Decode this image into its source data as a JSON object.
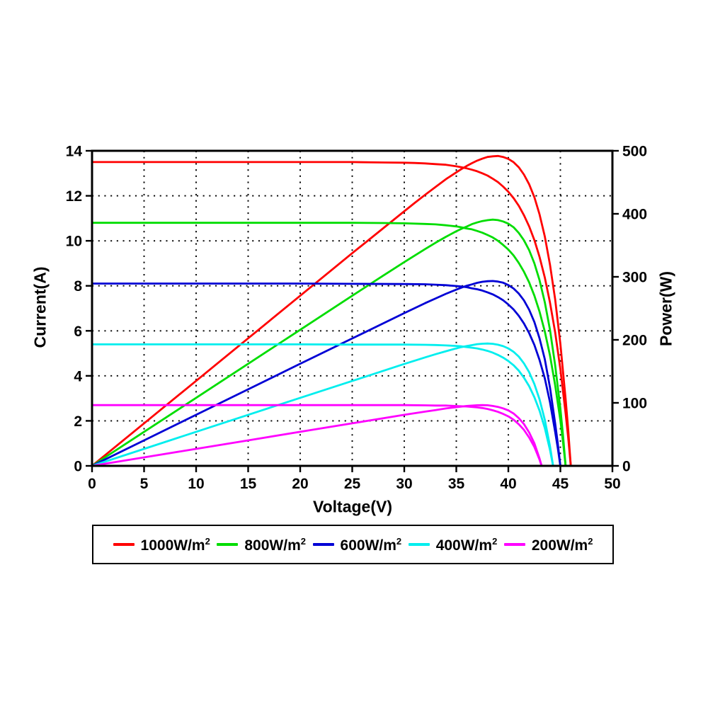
{
  "figure": {
    "background": "#ffffff",
    "grid": {
      "style": "dotted",
      "color": "#000000"
    },
    "frame_color": "#000000"
  },
  "chart_data": {
    "type": "line",
    "title": "",
    "xlabel": "Voltage(V)",
    "ylabel_left": "Current(A)",
    "ylabel_right": "Power(W)",
    "x_range": [
      0,
      50
    ],
    "left_range": [
      0,
      14
    ],
    "right_range": [
      0,
      500
    ],
    "x_ticks": [
      0,
      5,
      10,
      15,
      20,
      25,
      30,
      35,
      40,
      45,
      50
    ],
    "left_ticks": [
      0,
      2,
      4,
      6,
      8,
      10,
      12,
      14
    ],
    "right_ticks": [
      0,
      100,
      200,
      300,
      400,
      500
    ],
    "grid_on": true,
    "legend_position": "bottom",
    "description": "Photovoltaic panel I-V curves (left axis, Current) and P-V curves (right axis, Power = V x I) at five irradiance levels",
    "series": [
      {
        "name": "1000W/m²",
        "color": "#ff0000",
        "isc_a": 13.5,
        "voc_v": 46.0,
        "vmp_v": 38.5,
        "pmax_w": 490,
        "iv_points": [
          [
            0,
            13.5
          ],
          [
            5,
            13.5
          ],
          [
            10,
            13.5
          ],
          [
            15,
            13.5
          ],
          [
            20,
            13.5
          ],
          [
            25,
            13.5
          ],
          [
            28,
            13.48
          ],
          [
            30,
            13.47
          ],
          [
            31,
            13.46
          ],
          [
            32,
            13.44
          ],
          [
            33,
            13.41
          ],
          [
            34,
            13.38
          ],
          [
            35,
            13.31
          ],
          [
            35.5,
            13.27
          ],
          [
            36,
            13.22
          ],
          [
            36.5,
            13.16
          ],
          [
            37,
            13.09
          ],
          [
            37.5,
            13.0
          ],
          [
            38,
            12.9
          ],
          [
            38.5,
            12.76
          ],
          [
            39,
            12.61
          ],
          [
            39.5,
            12.41
          ],
          [
            40,
            12.18
          ],
          [
            40.5,
            11.9
          ],
          [
            41,
            11.56
          ],
          [
            41.5,
            11.14
          ],
          [
            42,
            10.64
          ],
          [
            42.5,
            10.03
          ],
          [
            43,
            9.28
          ],
          [
            43.5,
            8.37
          ],
          [
            44,
            7.26
          ],
          [
            44.5,
            5.94
          ],
          [
            45,
            4.3
          ],
          [
            45.5,
            2.33
          ],
          [
            45.75,
            1.27
          ],
          [
            46,
            0
          ]
        ]
      },
      {
        "name": "800W/m²",
        "color": "#00dd00",
        "isc_a": 10.8,
        "voc_v": 45.5,
        "vmp_v": 38.0,
        "pmax_w": 390,
        "iv_points": [
          [
            0,
            10.8
          ],
          [
            5,
            10.8
          ],
          [
            10,
            10.8
          ],
          [
            15,
            10.8
          ],
          [
            20,
            10.8
          ],
          [
            25,
            10.8
          ],
          [
            28,
            10.79
          ],
          [
            30,
            10.78
          ],
          [
            32,
            10.75
          ],
          [
            33,
            10.73
          ],
          [
            34,
            10.69
          ],
          [
            35,
            10.64
          ],
          [
            35.5,
            10.6
          ],
          [
            36,
            10.55
          ],
          [
            36.5,
            10.51
          ],
          [
            37,
            10.44
          ],
          [
            37.5,
            10.36
          ],
          [
            38,
            10.26
          ],
          [
            38.5,
            10.15
          ],
          [
            39,
            10.0
          ],
          [
            39.5,
            9.82
          ],
          [
            40,
            9.61
          ],
          [
            40.5,
            9.35
          ],
          [
            41,
            9.02
          ],
          [
            41.5,
            8.63
          ],
          [
            42,
            8.15
          ],
          [
            42.5,
            7.56
          ],
          [
            43,
            6.85
          ],
          [
            43.5,
            5.97
          ],
          [
            44,
            4.91
          ],
          [
            44.5,
            3.59
          ],
          [
            45,
            2.02
          ],
          [
            45.25,
            1.07
          ],
          [
            45.5,
            0
          ]
        ]
      },
      {
        "name": "600W/m²",
        "color": "#0000d5",
        "isc_a": 8.1,
        "voc_v": 45.0,
        "vmp_v": 37.5,
        "pmax_w": 292,
        "iv_points": [
          [
            0,
            8.1
          ],
          [
            5,
            8.1
          ],
          [
            10,
            8.1
          ],
          [
            15,
            8.1
          ],
          [
            20,
            8.1
          ],
          [
            25,
            8.09
          ],
          [
            30,
            8.08
          ],
          [
            32,
            8.07
          ],
          [
            33,
            8.05
          ],
          [
            34,
            8.03
          ],
          [
            35,
            7.99
          ],
          [
            35.5,
            7.97
          ],
          [
            36,
            7.94
          ],
          [
            36.5,
            7.89
          ],
          [
            37,
            7.85
          ],
          [
            37.5,
            7.79
          ],
          [
            38,
            7.71
          ],
          [
            38.5,
            7.62
          ],
          [
            39,
            7.5
          ],
          [
            39.5,
            7.36
          ],
          [
            40,
            7.17
          ],
          [
            40.5,
            6.95
          ],
          [
            41,
            6.67
          ],
          [
            41.5,
            6.33
          ],
          [
            42,
            5.9
          ],
          [
            42.5,
            5.37
          ],
          [
            43,
            4.7
          ],
          [
            43.5,
            3.89
          ],
          [
            44,
            2.83
          ],
          [
            44.5,
            1.52
          ],
          [
            44.75,
            0.8
          ],
          [
            45,
            0
          ]
        ]
      },
      {
        "name": "400W/m²",
        "color": "#00eeee",
        "isc_a": 5.4,
        "voc_v": 44.3,
        "vmp_v": 37.0,
        "pmax_w": 193,
        "iv_points": [
          [
            0,
            5.4
          ],
          [
            5,
            5.4
          ],
          [
            10,
            5.4
          ],
          [
            15,
            5.4
          ],
          [
            20,
            5.4
          ],
          [
            25,
            5.39
          ],
          [
            30,
            5.39
          ],
          [
            32,
            5.38
          ],
          [
            33,
            5.37
          ],
          [
            34,
            5.35
          ],
          [
            35,
            5.33
          ],
          [
            35.5,
            5.31
          ],
          [
            36,
            5.28
          ],
          [
            36.5,
            5.25
          ],
          [
            37,
            5.22
          ],
          [
            37.5,
            5.17
          ],
          [
            38,
            5.11
          ],
          [
            38.5,
            5.03
          ],
          [
            39,
            4.93
          ],
          [
            39.5,
            4.81
          ],
          [
            40,
            4.66
          ],
          [
            40.5,
            4.47
          ],
          [
            41,
            4.23
          ],
          [
            41.5,
            3.92
          ],
          [
            42,
            3.54
          ],
          [
            42.5,
            3.05
          ],
          [
            43,
            2.45
          ],
          [
            43.5,
            1.68
          ],
          [
            44,
            0.71
          ],
          [
            44.3,
            0
          ]
        ]
      },
      {
        "name": "200W/m²",
        "color": "#ff00ff",
        "isc_a": 2.7,
        "voc_v": 43.2,
        "vmp_v": 36.0,
        "pmax_w": 95,
        "iv_points": [
          [
            0,
            2.7
          ],
          [
            5,
            2.7
          ],
          [
            10,
            2.7
          ],
          [
            15,
            2.7
          ],
          [
            20,
            2.7
          ],
          [
            25,
            2.7
          ],
          [
            30,
            2.7
          ],
          [
            32,
            2.69
          ],
          [
            33,
            2.68
          ],
          [
            34,
            2.68
          ],
          [
            35,
            2.66
          ],
          [
            36,
            2.64
          ],
          [
            36.5,
            2.62
          ],
          [
            37,
            2.6
          ],
          [
            37.5,
            2.57
          ],
          [
            38,
            2.53
          ],
          [
            38.5,
            2.47
          ],
          [
            39,
            2.4
          ],
          [
            39.5,
            2.31
          ],
          [
            40,
            2.2
          ],
          [
            40.5,
            2.05
          ],
          [
            41,
            1.85
          ],
          [
            41.5,
            1.6
          ],
          [
            42,
            1.26
          ],
          [
            42.5,
            0.84
          ],
          [
            43,
            0.27
          ],
          [
            43.2,
            0
          ]
        ]
      }
    ]
  },
  "legend": {
    "items": [
      {
        "label_base": "1000W/m",
        "label_exp": "2",
        "color": "#ff0000"
      },
      {
        "label_base": "800W/m",
        "label_exp": "2",
        "color": "#00dd00"
      },
      {
        "label_base": "600W/m",
        "label_exp": "2",
        "color": "#0000d5"
      },
      {
        "label_base": "400W/m",
        "label_exp": "2",
        "color": "#00eeee"
      },
      {
        "label_base": "200W/m",
        "label_exp": "2",
        "color": "#ff00ff"
      }
    ]
  }
}
